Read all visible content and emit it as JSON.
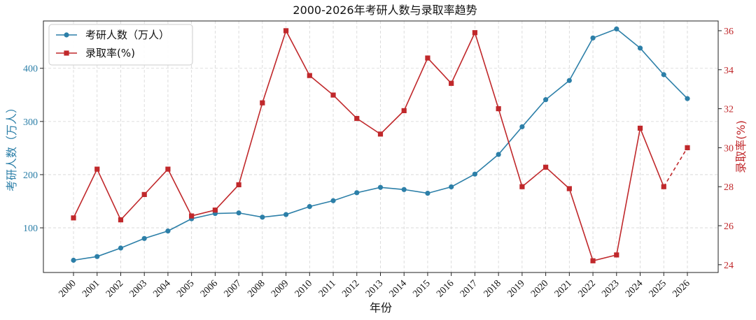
{
  "chart_data": {
    "type": "line",
    "title": "2000-2026年考研人数与录取率趋势",
    "xlabel": "年份",
    "ylabel_left": "考研人数（万人）",
    "ylabel_right": "录取率(%)",
    "categories": [
      "2000",
      "2001",
      "2002",
      "2003",
      "2004",
      "2005",
      "2006",
      "2007",
      "2008",
      "2009",
      "2010",
      "2011",
      "2012",
      "2013",
      "2014",
      "2015",
      "2016",
      "2017",
      "2018",
      "2019",
      "2020",
      "2021",
      "2022",
      "2023",
      "2024",
      "2025",
      "2026"
    ],
    "series": [
      {
        "name": "考研人数（万人）",
        "axis": "left",
        "color": "#2c7fa8",
        "marker": "circle",
        "values": [
          39,
          46,
          62,
          80,
          94,
          117,
          127,
          128,
          120,
          125,
          140,
          151,
          166,
          176,
          172,
          165,
          177,
          201,
          238,
          290,
          341,
          377,
          457,
          474,
          438,
          388,
          343
        ]
      },
      {
        "name": "录取率(%)",
        "axis": "right",
        "color": "#c0282b",
        "marker": "square",
        "dashed_last_segment": true,
        "values": [
          26.4,
          28.9,
          26.3,
          27.6,
          28.9,
          26.5,
          26.8,
          28.1,
          32.3,
          36.0,
          33.7,
          32.7,
          31.5,
          30.7,
          31.9,
          34.6,
          33.3,
          35.9,
          32.0,
          28.0,
          29.0,
          27.9,
          24.2,
          24.5,
          31.0,
          28.0,
          30.0
        ]
      }
    ],
    "yticks_left": [
      100,
      200,
      300,
      400
    ],
    "yticks_right": [
      24,
      26,
      28,
      30,
      32,
      34,
      36
    ],
    "ylim_left": [
      16,
      489
    ],
    "ylim_right": [
      23.6,
      36.5
    ],
    "grid": true,
    "legend_position": "top-left",
    "left_axis_color": "#2c7fa8",
    "right_axis_color": "#c0282b"
  }
}
